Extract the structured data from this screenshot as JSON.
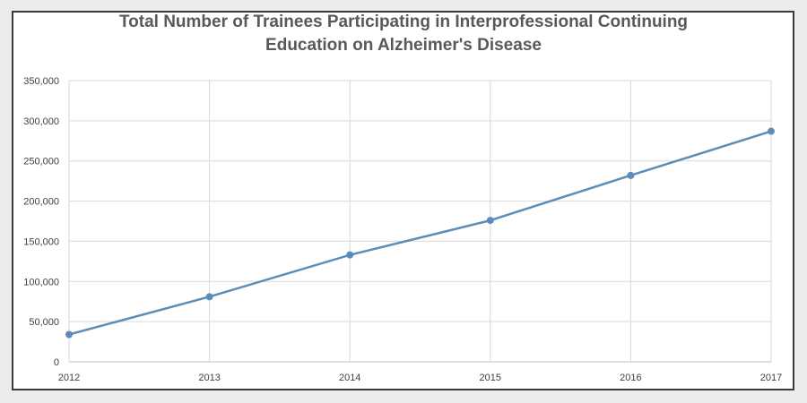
{
  "chart_data": {
    "type": "line",
    "title_lines": [
      "Total Number of Trainees Participating in Interprofessional Continuing",
      "Education on Alzheimer's Disease"
    ],
    "x": [
      "2012",
      "2013",
      "2014",
      "2015",
      "2016",
      "2017"
    ],
    "series": [
      {
        "values": [
          34000,
          81000,
          133000,
          176000,
          232000,
          287000
        ],
        "color": "#5b8db8"
      }
    ],
    "y_ticks": [
      "0",
      "50,000",
      "100,000",
      "150,000",
      "200,000",
      "250,000",
      "300,000",
      "350,000"
    ],
    "ylim": [
      0,
      350000
    ],
    "grid": true,
    "legend": "none"
  }
}
